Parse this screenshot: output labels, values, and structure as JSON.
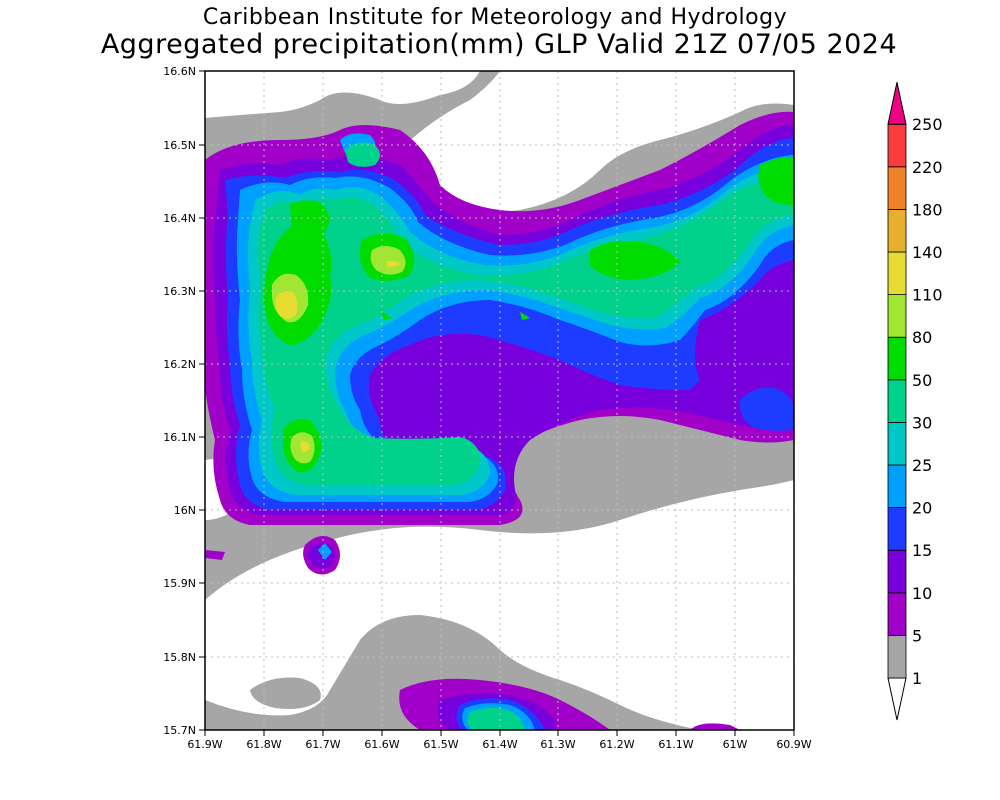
{
  "header": {
    "title": "Caribbean Institute for Meteorology and Hydrology",
    "subtitle": "Aggregated precipitation(mm) GLP Valid 21Z 07/05 2024"
  },
  "axes": {
    "y_ticks": [
      "16.6N",
      "16.5N",
      "16.4N",
      "16.3N",
      "16.2N",
      "16.1N",
      "16N",
      "15.9N",
      "15.8N",
      "15.7N"
    ],
    "x_ticks": [
      "61.9W",
      "61.8W",
      "61.7W",
      "61.6W",
      "61.5W",
      "61.4W",
      "61.3W",
      "61.2W",
      "61.1W",
      "61W",
      "60.9W"
    ]
  },
  "legend": {
    "levels": [
      "1",
      "5",
      "10",
      "15",
      "20",
      "25",
      "30",
      "50",
      "80",
      "110",
      "140",
      "180",
      "220",
      "250"
    ],
    "colors": [
      "#ffffff",
      "#a6a6a6",
      "#a000c8",
      "#7800dc",
      "#1e3cff",
      "#00a0ff",
      "#00c8c8",
      "#00d28c",
      "#00dc00",
      "#a0e632",
      "#e6dc32",
      "#e6af2d",
      "#f08228",
      "#fa3c3c",
      "#f00082"
    ]
  }
}
